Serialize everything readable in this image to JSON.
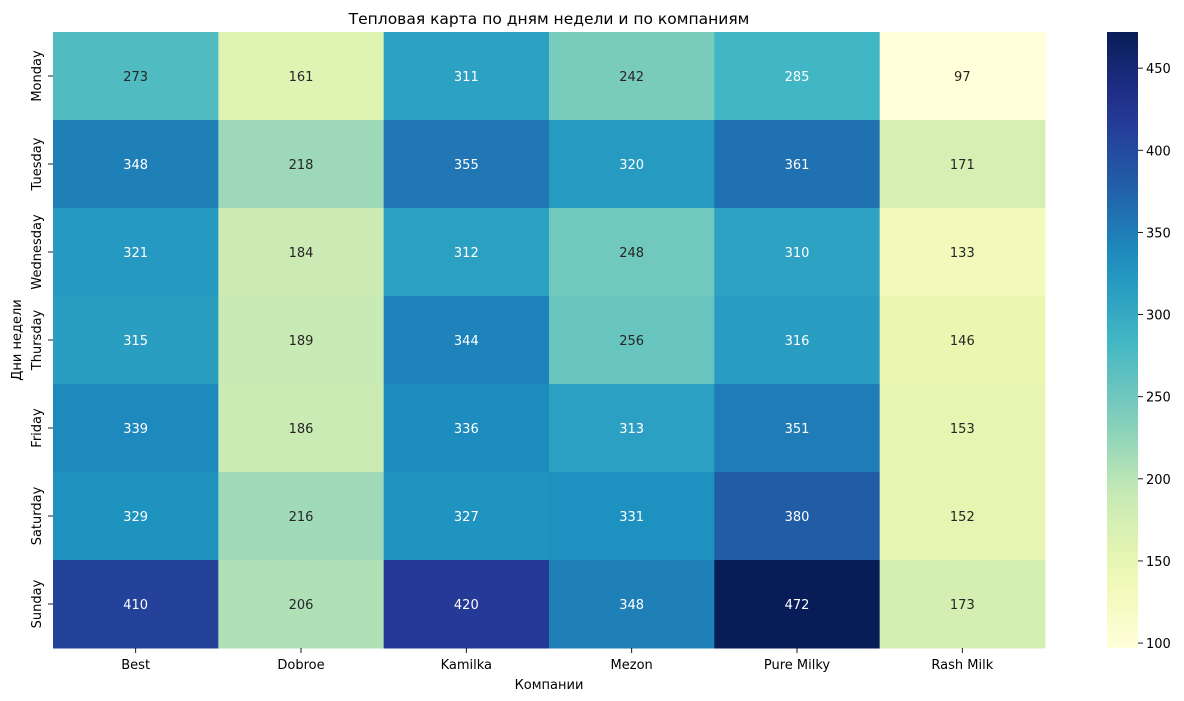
{
  "chart_data": {
    "type": "heatmap",
    "title": "Тепловая карта по дням недели и по компаниям",
    "xlabel": "Компании",
    "ylabel": "Дни недели",
    "x_categories": [
      "Best",
      "Dobroe",
      "Kamilka",
      "Mezon",
      "Pure Milky",
      "Rash Milk"
    ],
    "y_categories": [
      "Monday",
      "Tuesday",
      "Wednesday",
      "Thursday",
      "Friday",
      "Saturday",
      "Sunday"
    ],
    "values": [
      [
        273,
        161,
        311,
        242,
        285,
        97
      ],
      [
        348,
        218,
        355,
        320,
        361,
        171
      ],
      [
        321,
        184,
        312,
        248,
        310,
        133
      ],
      [
        315,
        189,
        344,
        256,
        316,
        146
      ],
      [
        339,
        186,
        336,
        313,
        351,
        153
      ],
      [
        329,
        216,
        327,
        331,
        380,
        152
      ],
      [
        410,
        206,
        420,
        348,
        472,
        173
      ]
    ],
    "colormap": "YlGnBu",
    "colorbar": {
      "range": [
        97,
        472
      ],
      "ticks": [
        100,
        150,
        200,
        250,
        300,
        350,
        400,
        450
      ]
    },
    "annotations": true
  }
}
